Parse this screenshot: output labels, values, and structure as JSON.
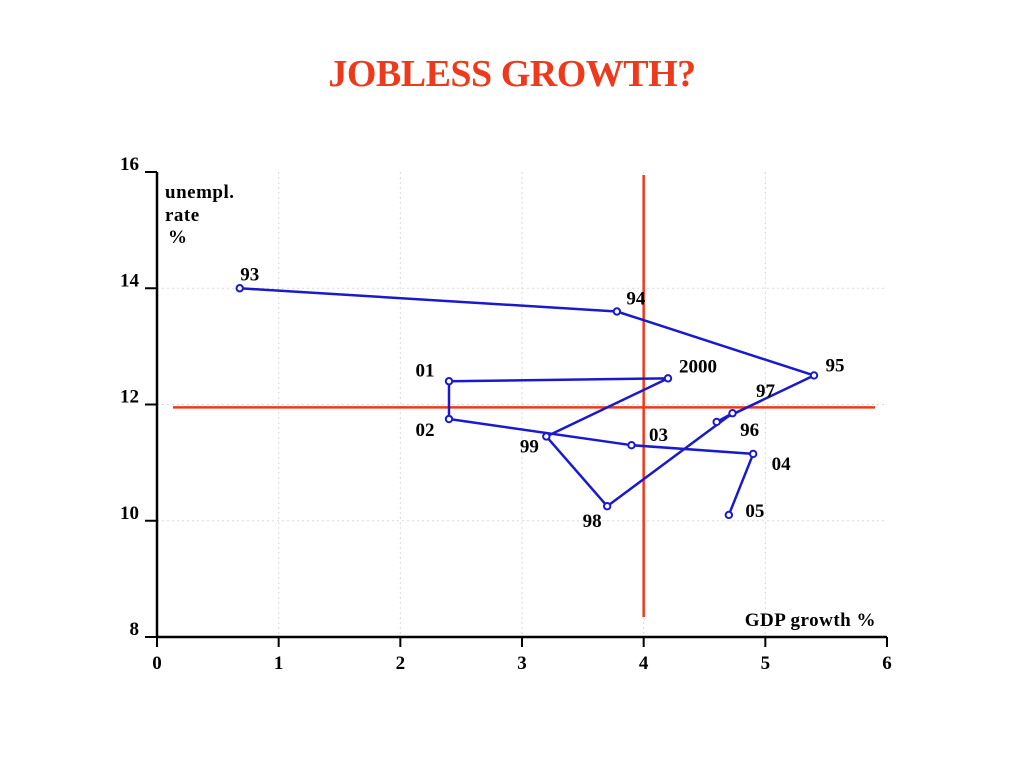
{
  "title": "JOBLESS GROWTH?",
  "chart_data": {
    "type": "line",
    "title": "JOBLESS GROWTH?",
    "xlabel": "GDP growth %",
    "ylabel": [
      "unempl.",
      "rate",
      "%"
    ],
    "xlim": [
      0,
      6
    ],
    "ylim": [
      8,
      16
    ],
    "xticks": [
      "0",
      "1",
      "2",
      "3",
      "4",
      "5",
      "6"
    ],
    "yticks": [
      "8",
      "10",
      "12",
      "14",
      "16"
    ],
    "grid": true,
    "series": [
      {
        "color": "#1a1acc",
        "points": [
          {
            "label": "93",
            "x": 0.68,
            "y": 14.0
          },
          {
            "label": "94",
            "x": 3.78,
            "y": 13.6
          },
          {
            "label": "95",
            "x": 5.4,
            "y": 12.5
          },
          {
            "label": "96",
            "x": 4.6,
            "y": 11.7
          },
          {
            "label": "97",
            "x": 4.73,
            "y": 11.85
          },
          {
            "label": "98",
            "x": 3.7,
            "y": 10.25
          },
          {
            "label": "99",
            "x": 3.2,
            "y": 11.45
          },
          {
            "label": "2000",
            "x": 4.2,
            "y": 12.45
          },
          {
            "label": "01",
            "x": 2.4,
            "y": 12.4
          },
          {
            "label": "02",
            "x": 2.4,
            "y": 11.75
          },
          {
            "label": "03",
            "x": 3.9,
            "y": 11.3
          },
          {
            "label": "04",
            "x": 4.9,
            "y": 11.15
          },
          {
            "label": "05",
            "x": 4.7,
            "y": 10.1
          }
        ]
      }
    ],
    "reference_lines": [
      {
        "orientation": "vertical",
        "x": 4.0,
        "color": "#ee3a1c"
      },
      {
        "orientation": "horizontal",
        "y": 11.95,
        "color": "#ee3a1c"
      }
    ]
  }
}
